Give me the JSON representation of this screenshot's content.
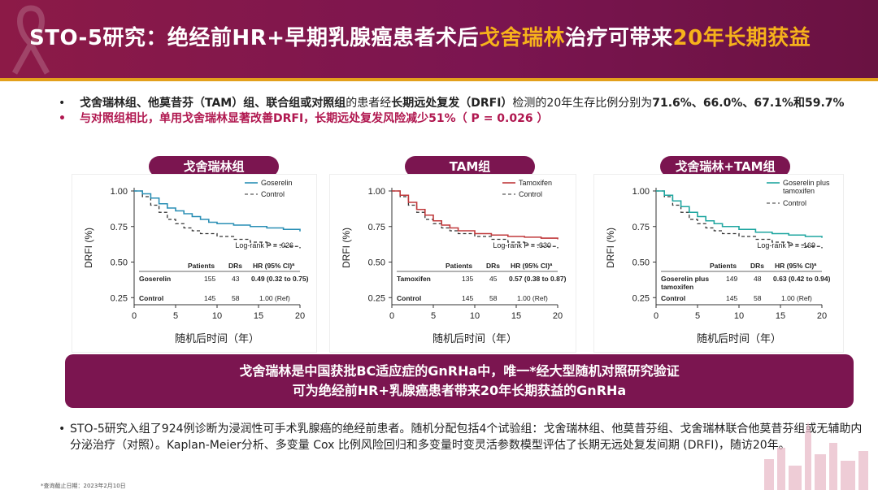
{
  "header": {
    "title_part1": "STO-5研究：绝经前HR+早期乳腺癌患者术后",
    "title_highlight1": "戈舍瑞林",
    "title_part2": "治疗可带来",
    "title_highlight2": "20年长期获益"
  },
  "bullets": {
    "b1_bold1": "戈舍瑞林组、他莫昔芬（TAM）组、联合组或对照组",
    "b1_text1": "的患者经",
    "b1_bold2": "长期远处复发（DRFI）",
    "b1_text2": "检测的20年生存比例分别为",
    "b1_bold3": "71.6%、66.0%、67.1%和59.7%",
    "b2": "与对照组相比，单用戈舍瑞林显著改善DRFI，长期远处复发风险减少51%（ P = 0.026 ）",
    "bullet_glyph": "•"
  },
  "colors": {
    "brand": "#7b1550",
    "accent": "#f6b21b",
    "goserelin": "#2a8fb5",
    "tamoxifen": "#c0393b",
    "combo": "#1fa6a0",
    "control": "#333333"
  },
  "charts": [
    {
      "pill": "戈舍瑞林组",
      "ylabel": "DRFI (%)",
      "xlabel": "随机后时间（年）",
      "yticks": [
        "1.00",
        "0.75",
        "0.50",
        "0.25"
      ],
      "xticks": [
        "0",
        "5",
        "10",
        "15",
        "20"
      ],
      "legend_treat": "Goserelin",
      "legend_ctrl": "Control",
      "logrank": "Log-rank P = .026",
      "table_head": [
        "Patients",
        "DRs",
        "HR (95% CI)ª"
      ],
      "row1": [
        "Goserelin",
        "155",
        "43",
        "0.49 (0.32 to 0.75)"
      ],
      "row2": [
        "Control",
        "145",
        "58",
        "1.00 (Ref)"
      ],
      "color": "#2a8fb5",
      "treat_pts": [
        [
          0,
          1.0
        ],
        [
          1,
          0.98
        ],
        [
          2,
          0.95
        ],
        [
          3,
          0.91
        ],
        [
          4,
          0.88
        ],
        [
          5,
          0.86
        ],
        [
          6,
          0.84
        ],
        [
          7,
          0.82
        ],
        [
          8,
          0.8
        ],
        [
          9,
          0.78
        ],
        [
          10,
          0.77
        ],
        [
          12,
          0.76
        ],
        [
          14,
          0.75
        ],
        [
          16,
          0.74
        ],
        [
          18,
          0.73
        ],
        [
          20,
          0.716
        ]
      ],
      "ctrl_pts": [
        [
          0,
          1.0
        ],
        [
          1,
          0.96
        ],
        [
          2,
          0.9
        ],
        [
          3,
          0.85
        ],
        [
          4,
          0.8
        ],
        [
          5,
          0.77
        ],
        [
          6,
          0.74
        ],
        [
          7,
          0.72
        ],
        [
          8,
          0.7
        ],
        [
          10,
          0.68
        ],
        [
          12,
          0.66
        ],
        [
          14,
          0.64
        ],
        [
          16,
          0.62
        ],
        [
          18,
          0.61
        ],
        [
          20,
          0.597
        ]
      ]
    },
    {
      "pill": "TAM组",
      "ylabel": "DRFI (%)",
      "xlabel": "随机后时间（年）",
      "yticks": [
        "1.00",
        "0.75",
        "0.50",
        "0.25"
      ],
      "xticks": [
        "0",
        "5",
        "10",
        "15",
        "20"
      ],
      "legend_treat": "Tamoxifen",
      "legend_ctrl": "Control",
      "logrank": "Log-rank P = .330",
      "table_head": [
        "Patients",
        "DRs",
        "HR (95% CI)ª"
      ],
      "row1": [
        "Tamoxifen",
        "135",
        "45",
        "0.57 (0.38 to 0.87)"
      ],
      "row2": [
        "Control",
        "145",
        "58",
        "1.00 (Ref)"
      ],
      "color": "#c0393b",
      "treat_pts": [
        [
          0,
          1.0
        ],
        [
          1,
          0.97
        ],
        [
          2,
          0.92
        ],
        [
          3,
          0.87
        ],
        [
          4,
          0.83
        ],
        [
          5,
          0.79
        ],
        [
          6,
          0.76
        ],
        [
          7,
          0.74
        ],
        [
          8,
          0.72
        ],
        [
          10,
          0.7
        ],
        [
          12,
          0.69
        ],
        [
          14,
          0.68
        ],
        [
          16,
          0.675
        ],
        [
          18,
          0.668
        ],
        [
          20,
          0.66
        ]
      ],
      "ctrl_pts": [
        [
          0,
          1.0
        ],
        [
          1,
          0.96
        ],
        [
          2,
          0.9
        ],
        [
          3,
          0.85
        ],
        [
          4,
          0.8
        ],
        [
          5,
          0.77
        ],
        [
          6,
          0.74
        ],
        [
          7,
          0.72
        ],
        [
          8,
          0.7
        ],
        [
          10,
          0.68
        ],
        [
          12,
          0.66
        ],
        [
          14,
          0.64
        ],
        [
          16,
          0.62
        ],
        [
          18,
          0.61
        ],
        [
          20,
          0.597
        ]
      ]
    },
    {
      "pill": "戈舍瑞林+TAM组",
      "ylabel": "DRFI (%)",
      "xlabel": "随机后时间（年）",
      "yticks": [
        "1.00",
        "0.75",
        "0.50",
        "0.25"
      ],
      "xticks": [
        "0",
        "5",
        "10",
        "15",
        "20"
      ],
      "legend_treat": "Goserelin plus tamoxifen",
      "legend_ctrl": "Control",
      "logrank": "Log-rank P = .169",
      "table_head": [
        "Patients",
        "DRs",
        "HR (95% CI)ª"
      ],
      "row1": [
        "Goserelin plus tamoxifen",
        "149",
        "48",
        "0.63 (0.42 to 0.94)"
      ],
      "row2": [
        "Control",
        "145",
        "58",
        "1.00 (Ref)"
      ],
      "color": "#1fa6a0",
      "treat_pts": [
        [
          0,
          1.0
        ],
        [
          1,
          0.97
        ],
        [
          2,
          0.93
        ],
        [
          3,
          0.89
        ],
        [
          4,
          0.85
        ],
        [
          5,
          0.82
        ],
        [
          6,
          0.79
        ],
        [
          7,
          0.77
        ],
        [
          8,
          0.75
        ],
        [
          10,
          0.73
        ],
        [
          12,
          0.71
        ],
        [
          14,
          0.7
        ],
        [
          16,
          0.69
        ],
        [
          18,
          0.68
        ],
        [
          20,
          0.671
        ]
      ],
      "ctrl_pts": [
        [
          0,
          1.0
        ],
        [
          1,
          0.96
        ],
        [
          2,
          0.9
        ],
        [
          3,
          0.85
        ],
        [
          4,
          0.8
        ],
        [
          5,
          0.77
        ],
        [
          6,
          0.74
        ],
        [
          7,
          0.72
        ],
        [
          8,
          0.7
        ],
        [
          10,
          0.68
        ],
        [
          12,
          0.66
        ],
        [
          14,
          0.64
        ],
        [
          16,
          0.62
        ],
        [
          18,
          0.61
        ],
        [
          20,
          0.597
        ]
      ]
    }
  ],
  "banner": {
    "line1": "戈舍瑞林是中国获批BC适应症的GnRHa中，唯一*经大型随机对照研究验证",
    "line2": "可为绝经前HR+乳腺癌患者带来20年长期获益的GnRHa"
  },
  "footer": {
    "text": "STO-5研究入组了924例诊断为浸润性可手术乳腺癌的绝经前患者。随机分配包括4个试验组：戈舍瑞林组、他莫昔芬组、戈舍瑞林联合他莫昔芬组或无辅助内分泌治疗（对照）。Kaplan-Meier分析、多变量 Cox 比例风险回归和多变量时变灵活参数模型评估了长期无远处复发间期 (DRFI)，随访20年。",
    "footnote": "*查询截止日期：2023年2月10日"
  }
}
